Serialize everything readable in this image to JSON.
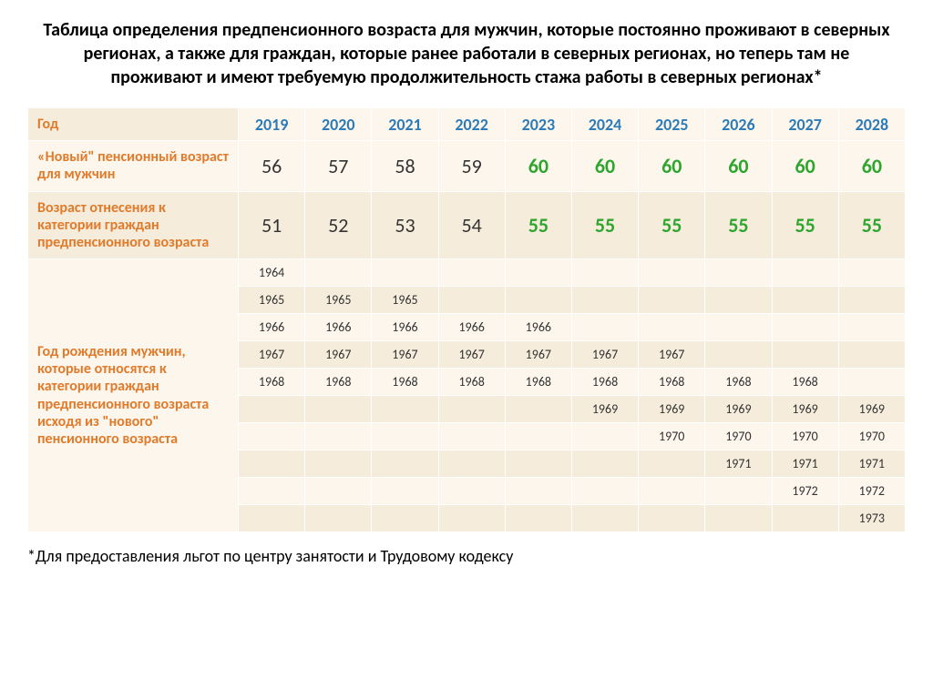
{
  "title": "Таблица определения предпенсионного возраста для мужчин, которые постоянно проживают в  северных регионах, а также для граждан, которые ранее работали в северных регионах, но теперь там не проживают и имеют требуемую продолжительность стажа работы в северных регионах*",
  "headerLabel": "Год",
  "years": [
    "2019",
    "2020",
    "2021",
    "2022",
    "2023",
    "2024",
    "2025",
    "2026",
    "2027",
    "2028"
  ],
  "row1": {
    "label": "«Новый\" пенсионный возраст для мужчин",
    "vals": [
      "56",
      "57",
      "58",
      "59",
      "60",
      "60",
      "60",
      "60",
      "60",
      "60"
    ],
    "greenFrom": 4
  },
  "row2": {
    "label": "Возраст отнесения к категории граждан предпенсионного возраста",
    "vals": [
      "51",
      "52",
      "53",
      "54",
      "55",
      "55",
      "55",
      "55",
      "55",
      "55"
    ],
    "greenFrom": 4
  },
  "birthBlock": {
    "label": "Год рождения мужчин, которые относятся к категории граждан предпенсионного возраста исходя из \"нового\" пенсионного возраста",
    "rows": [
      [
        "1964",
        "",
        "",
        "",
        "",
        "",
        "",
        "",
        "",
        ""
      ],
      [
        "1965",
        "1965",
        "1965",
        "",
        "",
        "",
        "",
        "",
        "",
        ""
      ],
      [
        "1966",
        "1966",
        "1966",
        "1966",
        "1966",
        "",
        "",
        "",
        "",
        ""
      ],
      [
        "1967",
        "1967",
        "1967",
        "1967",
        "1967",
        "1967",
        "1967",
        "",
        "",
        ""
      ],
      [
        "1968",
        "1968",
        "1968",
        "1968",
        "1968",
        "1968",
        "1968",
        "1968",
        "1968",
        ""
      ],
      [
        "",
        "",
        "",
        "",
        "",
        "1969",
        "1969",
        "1969",
        "1969",
        "1969"
      ],
      [
        "",
        "",
        "",
        "",
        "",
        "",
        "1970",
        "1970",
        "1970",
        "1970"
      ],
      [
        "",
        "",
        "",
        "",
        "",
        "",
        "",
        "1971",
        "1971",
        "1971"
      ],
      [
        "",
        "",
        "",
        "",
        "",
        "",
        "",
        "",
        "1972",
        "1972"
      ],
      [
        "",
        "",
        "",
        "",
        "",
        "",
        "",
        "",
        "",
        "1973"
      ]
    ]
  },
  "footnote": "*Для предоставления льгот по центру занятости и Трудовому кодексу",
  "colors": {
    "labelOrange": "#e07b2c",
    "headerBlue": "#2c7bb8",
    "valGreen": "#2ea52e",
    "bgLight": "#fdf6ec",
    "bgStripe": "#f5ecdc"
  }
}
